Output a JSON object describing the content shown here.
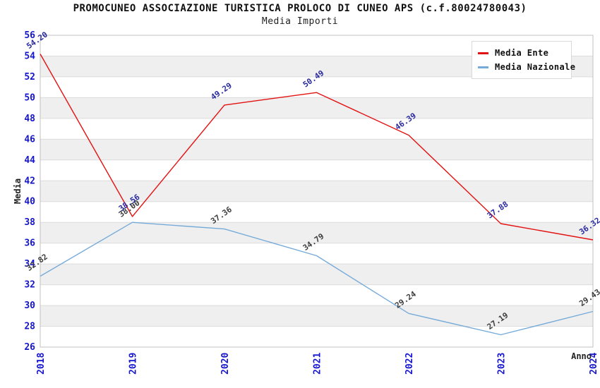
{
  "header": {
    "title": "PROMOCUNEO ASSOCIAZIONE TURISTICA PROLOCO DI CUNEO APS (c.f.80024780043)",
    "subtitle": "Media Importi"
  },
  "chart_data": {
    "type": "line",
    "title": "PROMOCUNEO ASSOCIAZIONE TURISTICA PROLOCO DI CUNEO APS (c.f.80024780043)",
    "subtitle": "Media Importi",
    "xlabel": "Anno",
    "ylabel": "Media",
    "categories": [
      "2018",
      "2019",
      "2020",
      "2021",
      "2022",
      "2023",
      "2024"
    ],
    "series": [
      {
        "name": "Media Nazionale",
        "color": "#76abd9",
        "label_color": "#3d3d3d",
        "values": [
          32.82,
          38.0,
          37.36,
          34.79,
          29.24,
          27.19,
          29.43
        ]
      },
      {
        "name": "Media Ente",
        "color": "#e31212",
        "label_color": "#2a2aa0",
        "values": [
          54.2,
          38.56,
          49.29,
          50.49,
          46.39,
          37.88,
          36.32
        ]
      }
    ],
    "ylim": [
      26,
      56
    ],
    "ytick_step": 2,
    "y_ticks": [
      26,
      28,
      30,
      32,
      34,
      36,
      38,
      40,
      42,
      44,
      46,
      48,
      50,
      52,
      54,
      56
    ],
    "grid": true,
    "legend_position": "top-right",
    "value_label_decimals": 2,
    "colors": {
      "tick_label": "#1515cf",
      "axis_title": "#222222",
      "band_fill": "#efefef",
      "gridline": "#dcdcdc",
      "plot_border": "#c0c0c0",
      "title_text": "#111111"
    }
  }
}
